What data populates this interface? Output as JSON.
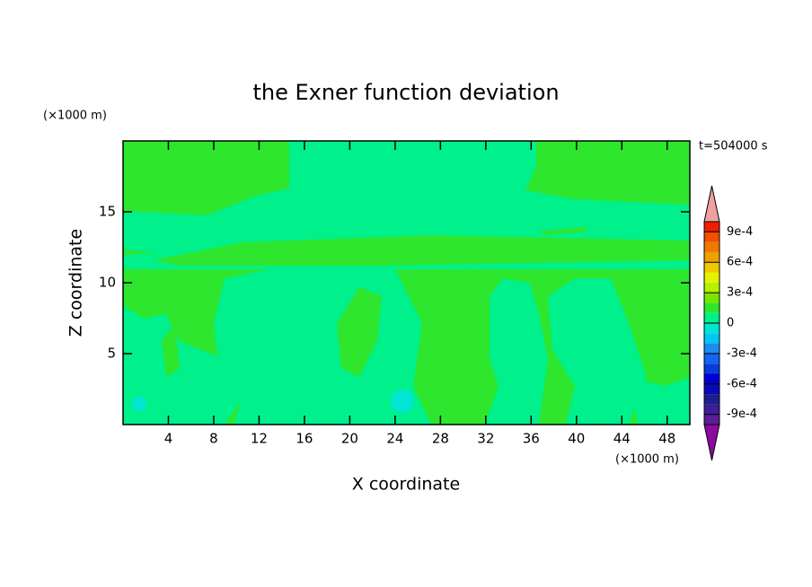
{
  "chart_data": {
    "type": "contour",
    "title": "the Exner function deviation",
    "x_label": "X coordinate",
    "y_label": "Z coordinate",
    "x_unit": "(×1000 m)",
    "y_unit": "(×1000 m)",
    "annotation": "t=504000 s",
    "xlim": [
      0,
      50
    ],
    "ylim": [
      0,
      20
    ],
    "xticks": [
      4,
      8,
      12,
      16,
      20,
      24,
      28,
      32,
      36,
      40,
      44,
      48
    ],
    "yticks": [
      5,
      10,
      15
    ],
    "colorbar": {
      "levels": [
        -0.001,
        -0.0009,
        -0.0008,
        -0.0007,
        -0.0006,
        -0.0005,
        -0.0004,
        -0.0003,
        -0.0002,
        -0.0001,
        0,
        0.0001,
        0.0002,
        0.0003,
        0.0004,
        0.0005,
        0.0006,
        0.0007,
        0.0008,
        0.0009,
        0.001
      ],
      "colors": [
        "#5a1e96",
        "#3c1e96",
        "#1e1e8c",
        "#0a0ab4",
        "#0000d2",
        "#0a3cdc",
        "#1464f0",
        "#1e8cf0",
        "#00c8f0",
        "#00e6d2",
        "#00f08c",
        "#2ee62e",
        "#78e600",
        "#b4f000",
        "#e6f000",
        "#f0c800",
        "#f0a000",
        "#f07800",
        "#f05000",
        "#f01e00"
      ],
      "under_color": "#8c0aa0",
      "over_color": "#f0a0a0",
      "ticks": [
        {
          "value": 0.0009,
          "label": "9e-4"
        },
        {
          "value": 0.0006,
          "label": "6e-4"
        },
        {
          "value": 0.0003,
          "label": "3e-4"
        },
        0,
        {
          "value": -0.0003,
          "label": "-3e-4"
        },
        {
          "value": -0.0006,
          "label": "-6e-4"
        },
        {
          "value": -0.0009,
          "label": "-9e-4"
        }
      ]
    }
  }
}
